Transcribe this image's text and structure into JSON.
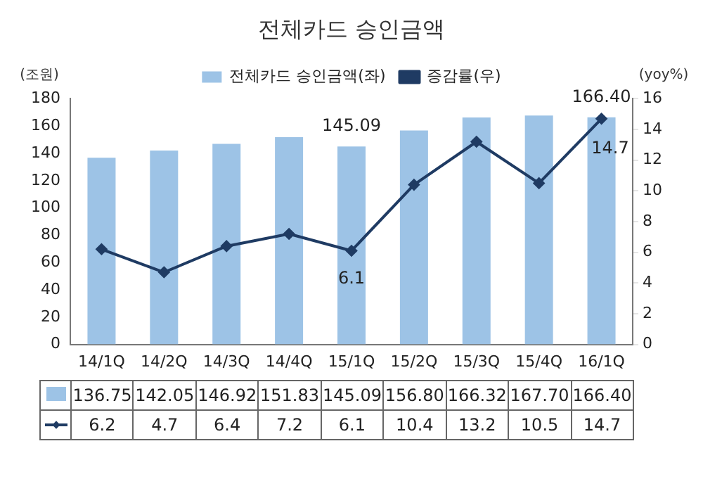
{
  "chart_data": {
    "type": "bar",
    "title": "전체카드 승인금액",
    "ylabel": "(조원)",
    "y2label": "(yoy%)",
    "categories": [
      "14/1Q",
      "14/2Q",
      "14/3Q",
      "14/4Q",
      "15/1Q",
      "15/2Q",
      "15/3Q",
      "15/4Q",
      "16/1Q"
    ],
    "series": [
      {
        "name": "전체카드 승인금액(좌)",
        "color": "#9dc3e6",
        "values": [
          136.75,
          142.05,
          146.92,
          151.83,
          145.09,
          156.8,
          166.32,
          167.7,
          166.4
        ],
        "value_labels": [
          "136.75",
          "142.05",
          "146.92",
          "151.83",
          "145.09",
          "156.80",
          "166.32",
          "167.70",
          "166.40"
        ]
      },
      {
        "name": "증감률(우)",
        "type": "line",
        "axis": "y2",
        "color": "#1f3b63",
        "values": [
          6.2,
          4.7,
          6.4,
          7.2,
          6.1,
          10.4,
          13.2,
          10.5,
          14.7
        ],
        "value_labels": [
          "6.2",
          "4.7",
          "6.4",
          "7.2",
          "6.1",
          "10.4",
          "13.2",
          "10.5",
          "14.7"
        ]
      }
    ],
    "ylim": [
      0,
      180
    ],
    "yticks": [
      0,
      20,
      40,
      60,
      80,
      100,
      120,
      140,
      160,
      180
    ],
    "y2lim": [
      0,
      16
    ],
    "y2ticks": [
      0,
      2,
      4,
      6,
      8,
      10,
      12,
      14,
      16
    ],
    "annotations": [
      {
        "text": "145.09",
        "x": "15/1Q",
        "y": 145.09
      },
      "6.1",
      {
        "text": "166.40",
        "x": "16/1Q",
        "y": 166.4
      },
      "14.7"
    ],
    "grid": false,
    "legend": "top",
    "marker": "diamond",
    "line_style": "solid"
  }
}
